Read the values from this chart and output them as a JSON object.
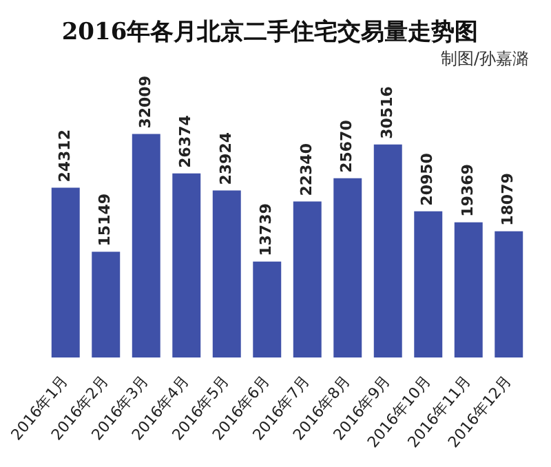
{
  "chart_data": {
    "type": "bar",
    "title": "2016年各月北京二手住宅交易量走势图",
    "subtitle": "制图/孙嘉潞",
    "categories": [
      "2016年1月",
      "2016年2月",
      "2016年3月",
      "2016年4月",
      "2016年5月",
      "2016年6月",
      "2016年7月",
      "2016年8月",
      "2016年9月",
      "2016年10月",
      "2016年11月",
      "2016年12月"
    ],
    "values": [
      24312,
      15149,
      32009,
      26374,
      23924,
      13739,
      22340,
      25670,
      30516,
      20950,
      19369,
      18079
    ],
    "color": "#3f51a8",
    "data_labels": true,
    "grid": false,
    "legend": false
  }
}
